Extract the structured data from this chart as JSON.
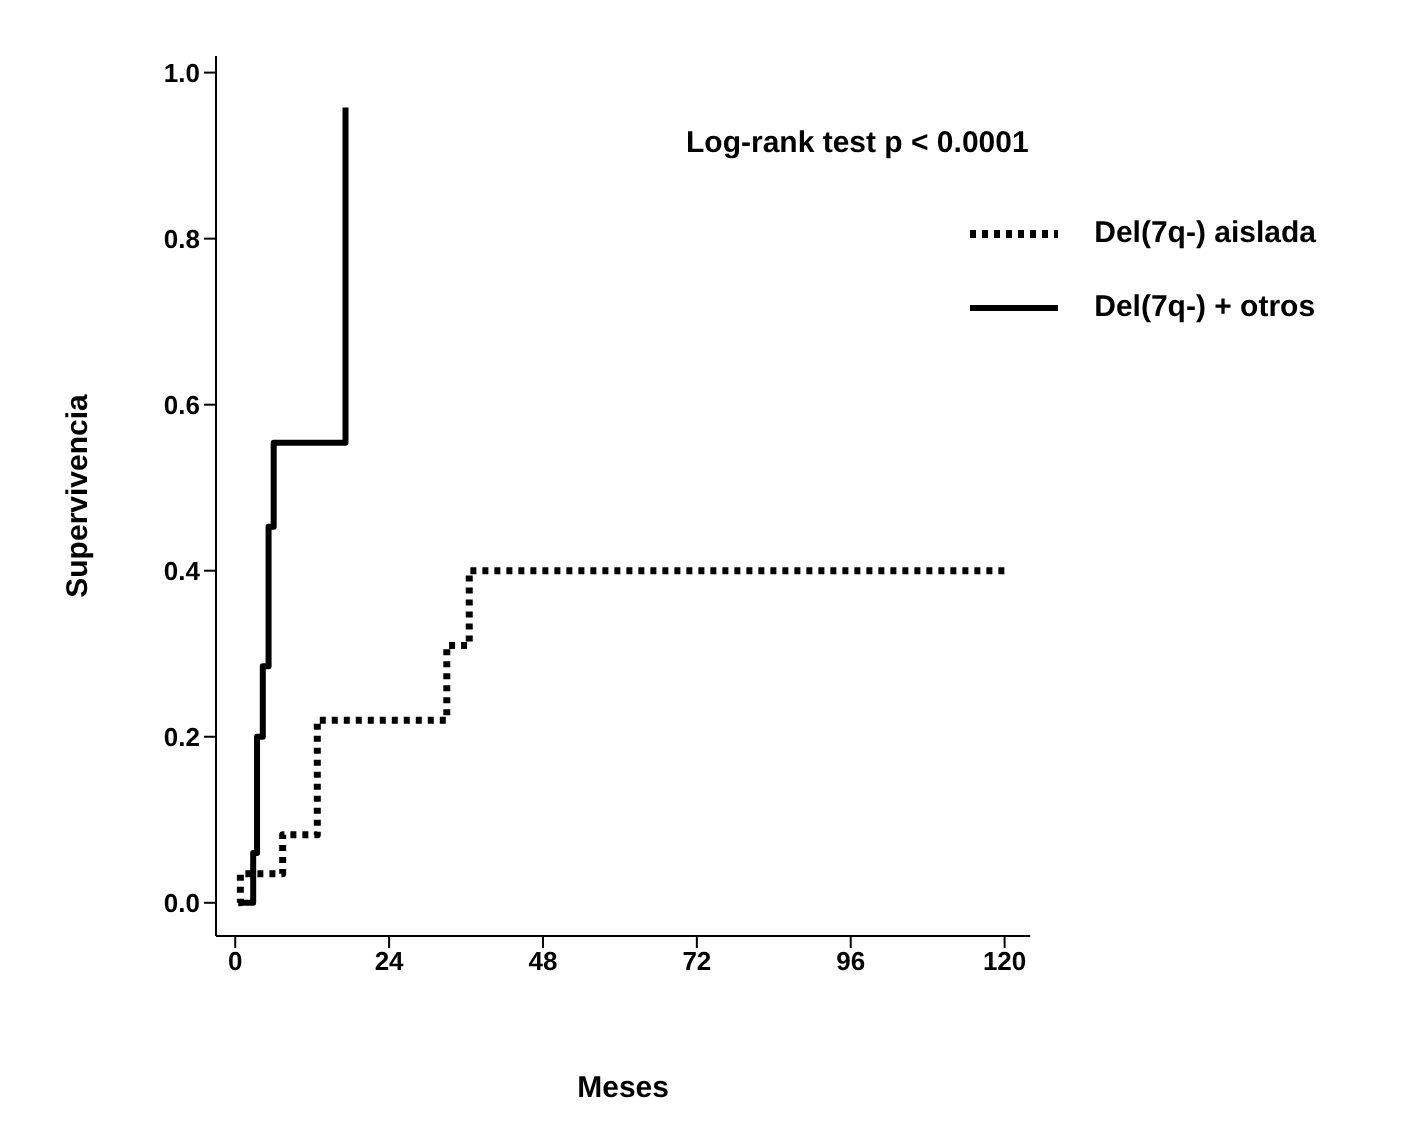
{
  "chart_data": {
    "type": "step",
    "xlabel": "Meses",
    "ylabel": "Supervivencia",
    "annotations": [
      "Log-rank test p < 0.0001"
    ],
    "xlim": [
      -3,
      124
    ],
    "xticks": [
      0,
      24,
      48,
      72,
      96,
      120
    ],
    "ylim": [
      -0.04,
      1.02
    ],
    "yticks": [
      {
        "value": 0,
        "label": "0.0"
      },
      {
        "value": 0.2,
        "label": "0.2"
      },
      {
        "value": 0.4,
        "label": "0.4"
      },
      {
        "value": 0.6,
        "label": "0.6"
      },
      {
        "value": 0.8,
        "label": "0.8"
      },
      {
        "value": 1,
        "label": "1.0"
      }
    ],
    "grid": false,
    "legend": "top right",
    "marker": "none",
    "series": [
      {
        "name": "Del(7q-) aislada",
        "color": "#000000",
        "line_style": "dotted",
        "x": [
          0.5,
          0.8,
          7.4,
          12.8,
          33,
          36.5,
          120
        ],
        "values": [
          0,
          0.035,
          0.082,
          0.22,
          0.31,
          0.4,
          0.4
        ]
      },
      {
        "name": "Del(7q-) + otros",
        "color": "#000000",
        "line_style": "solid",
        "x": [
          0.5,
          2.8,
          3.4,
          4.3,
          5.2,
          6.0,
          17.2
        ],
        "values": [
          0,
          0.06,
          0.2,
          0.285,
          0.453,
          0.554,
          0.958
        ]
      }
    ]
  }
}
